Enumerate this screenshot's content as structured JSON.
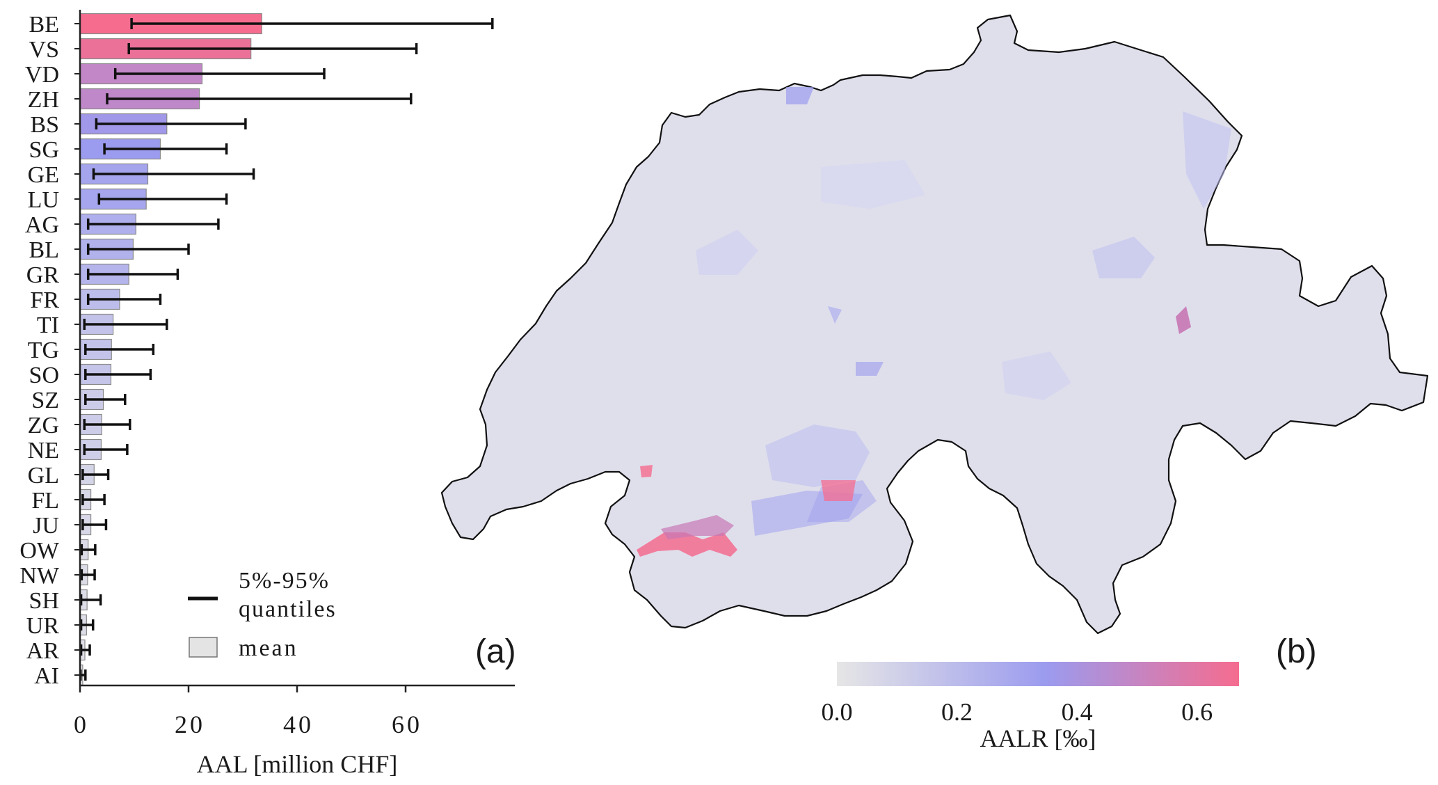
{
  "chart_data": [
    {
      "type": "bar",
      "orientation": "horizontal",
      "panel_label": "(a)",
      "categories": [
        "BE",
        "VS",
        "VD",
        "ZH",
        "BS",
        "SG",
        "GE",
        "LU",
        "AG",
        "BL",
        "GR",
        "FR",
        "TI",
        "TG",
        "SO",
        "SZ",
        "ZG",
        "NE",
        "GL",
        "FL",
        "JU",
        "OW",
        "NW",
        "SH",
        "UR",
        "AR",
        "AI"
      ],
      "values": [
        33.5,
        31.5,
        22.5,
        22.0,
        16.0,
        14.8,
        12.5,
        12.2,
        10.3,
        9.8,
        9.0,
        7.3,
        6.1,
        5.8,
        5.7,
        4.3,
        4.0,
        3.9,
        2.6,
        2.0,
        2.0,
        1.5,
        1.4,
        1.3,
        1.2,
        0.9,
        0.5
      ],
      "error_low": [
        9.5,
        9.0,
        6.5,
        5.0,
        3.0,
        4.5,
        2.5,
        3.5,
        1.5,
        1.5,
        1.5,
        1.5,
        0.8,
        1.0,
        1.0,
        1.0,
        0.8,
        0.8,
        0.5,
        0.5,
        0.5,
        0.3,
        0.3,
        0.2,
        0.2,
        0.2,
        0.1
      ],
      "error_high": [
        76.0,
        62.0,
        45.0,
        61.0,
        30.5,
        27.0,
        32.0,
        27.0,
        25.5,
        20.0,
        18.0,
        14.8,
        16.0,
        13.5,
        13.0,
        8.3,
        9.2,
        8.7,
        5.2,
        4.5,
        4.8,
        2.8,
        2.7,
        3.8,
        2.4,
        1.8,
        1.0
      ],
      "xlabel": "AAL [million CHF]",
      "xlim": [
        0,
        80
      ],
      "xticks": [
        0,
        20,
        40,
        60
      ],
      "xticklabels": [
        "0",
        "20",
        "40",
        "60"
      ],
      "legend": {
        "placement": "bottom-right",
        "errorbar_label_line1": "5%-95%",
        "errorbar_label_line2": "quantiles",
        "bar_label": "mean"
      },
      "colors": {
        "low": "#e6e6e6",
        "mid": "#9b9bef",
        "high": "#f56c8f",
        "errorbar": "#111111",
        "bar_edge": "#8a8a8a"
      }
    },
    {
      "type": "choropleth",
      "panel_label": "(b)",
      "colorbar": {
        "label": "AALR [‰]",
        "range": [
          0,
          0.67
        ],
        "ticks": [
          0.0,
          0.2,
          0.4,
          0.6
        ],
        "ticklabels": [
          "0.0",
          "0.2",
          "0.4",
          "0.6"
        ],
        "stops": [
          "#e6e6e6",
          "#9b9bef",
          "#f56c8f"
        ]
      }
    }
  ]
}
